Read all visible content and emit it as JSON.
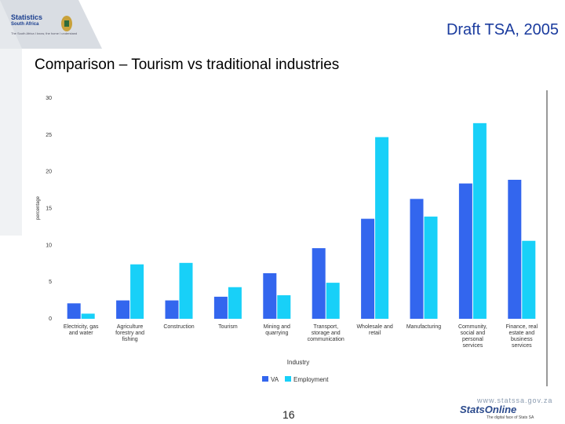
{
  "header": {
    "logo_text_line1": "Statistics",
    "logo_text_line2": "South Africa",
    "logo_tagline": "The South Africa I know, the home I understand",
    "title": "Draft TSA, 2005"
  },
  "slide": {
    "title": "Comparison – Tourism vs traditional industries"
  },
  "footer": {
    "page_number": "16",
    "url": "www.statssa.gov.za",
    "brand": "StatsOnline",
    "slogan": "The digital face of Stats SA"
  },
  "colors": {
    "va": "#3366ee",
    "employment": "#18d0f8",
    "title": "#1a3b9e"
  },
  "chart_data": {
    "type": "bar",
    "title": "",
    "xlabel": "Industry",
    "ylabel": "percentage",
    "ylim": [
      0,
      30
    ],
    "yticks": [
      0,
      5,
      10,
      15,
      20,
      25,
      30
    ],
    "grid": false,
    "legend_position": "bottom",
    "categories": [
      [
        "Electricity, gas",
        "and water"
      ],
      [
        "Agriculture",
        "forestry and",
        "fishing"
      ],
      [
        "Construction"
      ],
      [
        "Tourism"
      ],
      [
        "Mining and",
        "quarrying"
      ],
      [
        "Transport,",
        "storage and",
        "communication"
      ],
      [
        "Wholesale and",
        "retail"
      ],
      [
        "Manufacturing"
      ],
      [
        "Community,",
        "social and",
        "personal",
        "services"
      ],
      [
        "Finance, real",
        "estate and",
        "business",
        "services"
      ]
    ],
    "series": [
      {
        "name": "VA",
        "values": [
          2.1,
          2.5,
          2.5,
          3.0,
          6.2,
          9.6,
          13.6,
          16.3,
          18.4,
          18.9
        ]
      },
      {
        "name": "Employment",
        "values": [
          0.7,
          7.4,
          7.6,
          4.3,
          3.2,
          4.9,
          24.7,
          13.9,
          26.6,
          10.6
        ]
      }
    ]
  }
}
